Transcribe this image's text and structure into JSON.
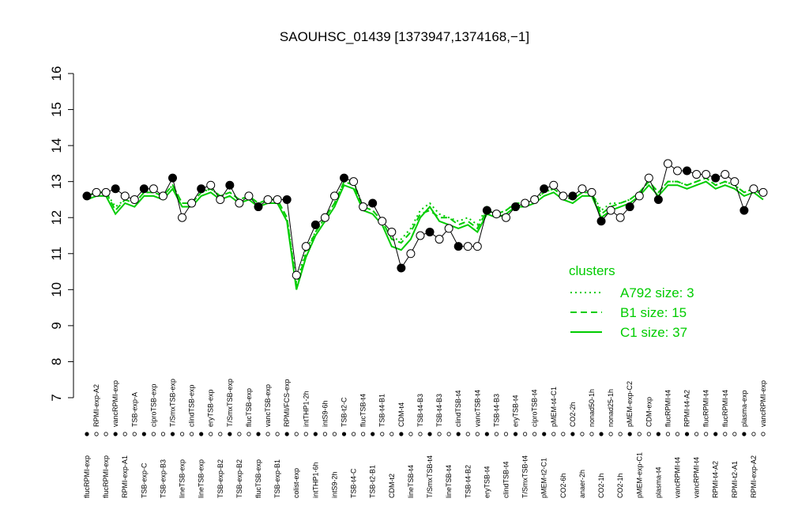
{
  "chart_data": {
    "type": "line",
    "title": "SAOUHSC_01439 [1373947,1374168,−1]",
    "categories": [
      "flucRPMI-exp",
      "RPMI-exp-A2",
      "flucRPMI-exp",
      "vancRPMI-exp",
      "RPMI-exp-A1",
      "TSB-exp-A",
      "TSB-exp-C",
      "ciproTSB-exp",
      "TSB-exp-B3",
      "T/SmxTSB-exp",
      "lineTSB-exp",
      "clindTSB-exp",
      "lineTSB-exp",
      "eryTSB-exp",
      "TSB-exp-B2",
      "T/SmxTSB-exp",
      "TSB-exp-B2",
      "flucTSB-exp",
      "flucTSB-exp",
      "vancTSB-exp",
      "TSB-exp-B1",
      "RPMI/FCS-exp",
      "colist-exp",
      "intTHP1-2h",
      "intTHP1-6h",
      "intS9-6h",
      "intS9-2h",
      "TSB-t2-C",
      "TSB-t4-C",
      "flucTSB-t4",
      "TSB-t2-B1",
      "TSB-t4-B1",
      "CDM-t2",
      "CDM-t4",
      "lineTSB-t4",
      "TSB-t4-B3",
      "T/SmxTSB-t4",
      "TSB-t4-B3",
      "lineTSB-t4",
      "clindTSB-t4",
      "TSB-t4-B2",
      "vancTSB-t4",
      "eryTSB-t4",
      "TSB-t4-B3",
      "clindTSB-t4",
      "eryTSB-t4",
      "T/SmxTSB-t4",
      "ciproTSB-t4",
      "pMEM-t2-C1",
      "pMEM-t4-C1",
      "CO2-6h",
      "CO2-2h",
      "anaer-2h",
      "nonad50-1h",
      "CO2-1h",
      "nonad25-1h",
      "CO2-1h",
      "pMEM-exp-C2",
      "pMEM-exp-C1",
      "CDM-exp",
      "plasma-t4",
      "flucRPMI-t4",
      "vancRPMI-t4",
      "RPMI-t4-A2",
      "vancRPMI-t4",
      "flucRPMI-t4",
      "RPMI-t4-A2",
      "flucRPMI-t4",
      "RPMI-t2-A1",
      "plasma-exp",
      "RPMI-exp-A2",
      "vancRPMI-exp"
    ],
    "values": [
      12.6,
      12.7,
      12.7,
      12.8,
      12.6,
      12.5,
      12.8,
      12.8,
      12.6,
      13.1,
      12.0,
      12.4,
      12.8,
      12.9,
      12.5,
      12.9,
      12.4,
      12.6,
      12.3,
      12.5,
      12.5,
      12.5,
      10.4,
      11.2,
      11.8,
      12.0,
      12.6,
      13.1,
      13.0,
      12.3,
      12.4,
      11.9,
      11.6,
      10.6,
      11.0,
      11.5,
      11.6,
      11.4,
      11.7,
      11.2,
      11.2,
      11.2,
      12.2,
      12.1,
      12.0,
      12.3,
      12.4,
      12.5,
      12.8,
      12.9,
      12.6,
      12.6,
      12.8,
      12.7,
      11.9,
      12.2,
      12.0,
      12.3,
      12.6,
      13.1,
      12.5,
      13.5,
      13.3,
      13.3,
      13.2,
      13.2,
      13.1,
      13.2,
      13.0,
      12.2,
      12.8,
      12.7
    ],
    "line_color": "#000000",
    "legend_title": "clusters",
    "legend_color": "#00cc00",
    "series": [
      {
        "name": "A792 size: 3",
        "color": "#00cc00",
        "dash": "dotted",
        "values": [
          12.6,
          12.7,
          12.7,
          12.3,
          12.5,
          12.4,
          12.7,
          12.7,
          12.6,
          12.9,
          12.4,
          12.4,
          12.7,
          12.8,
          12.6,
          12.7,
          12.5,
          12.6,
          12.4,
          12.5,
          12.5,
          12.0,
          10.2,
          11.1,
          11.6,
          12.0,
          12.4,
          13.0,
          13.0,
          12.3,
          12.2,
          11.9,
          11.4,
          11.4,
          11.7,
          12.2,
          12.4,
          12.1,
          12.0,
          11.9,
          12.0,
          11.8,
          12.3,
          12.1,
          12.2,
          12.4,
          12.4,
          12.5,
          12.7,
          12.8,
          12.6,
          12.5,
          12.7,
          12.7,
          12.2,
          12.4,
          12.4,
          12.5,
          12.7,
          13.0,
          12.7,
          13.0,
          13.0,
          12.9,
          13.0,
          13.1,
          12.9,
          13.0,
          12.9,
          12.7,
          12.8,
          12.6
        ]
      },
      {
        "name": "B1 size: 15",
        "color": "#00cc00",
        "dash": "dashed",
        "values": [
          12.6,
          12.7,
          12.7,
          12.2,
          12.5,
          12.4,
          12.7,
          12.7,
          12.6,
          12.9,
          12.4,
          12.4,
          12.7,
          12.8,
          12.6,
          12.7,
          12.5,
          12.6,
          12.4,
          12.5,
          12.5,
          12.0,
          10.1,
          11.0,
          11.6,
          12.0,
          12.4,
          13.0,
          12.9,
          12.3,
          12.2,
          11.9,
          11.4,
          11.3,
          11.6,
          12.1,
          12.2,
          12.0,
          12.0,
          11.8,
          11.9,
          11.7,
          12.2,
          12.1,
          12.2,
          12.4,
          12.4,
          12.5,
          12.7,
          12.8,
          12.6,
          12.5,
          12.7,
          12.7,
          12.1,
          12.3,
          12.4,
          12.5,
          12.7,
          13.0,
          12.7,
          13.0,
          13.0,
          12.9,
          13.0,
          13.1,
          12.9,
          13.0,
          12.9,
          12.7,
          12.8,
          12.6
        ]
      },
      {
        "name": "C1 size: 37",
        "color": "#00cc00",
        "dash": "solid",
        "values": [
          12.5,
          12.6,
          12.6,
          12.1,
          12.4,
          12.3,
          12.6,
          12.6,
          12.5,
          12.8,
          12.3,
          12.3,
          12.6,
          12.7,
          12.5,
          12.6,
          12.4,
          12.5,
          12.3,
          12.4,
          12.4,
          11.9,
          10.0,
          10.9,
          11.5,
          11.9,
          12.3,
          12.9,
          12.8,
          12.2,
          12.1,
          11.8,
          11.2,
          11.1,
          11.4,
          12.0,
          12.3,
          11.9,
          11.8,
          11.7,
          11.8,
          11.6,
          12.1,
          12.0,
          12.1,
          12.3,
          12.3,
          12.4,
          12.6,
          12.7,
          12.5,
          12.4,
          12.6,
          12.6,
          12.0,
          12.2,
          12.3,
          12.4,
          12.6,
          12.9,
          12.6,
          12.9,
          12.9,
          12.8,
          12.9,
          13.0,
          12.8,
          12.9,
          12.8,
          12.6,
          12.7,
          12.5
        ]
      }
    ],
    "ylim": [
      7,
      16
    ],
    "yticks": [
      7,
      8,
      9,
      10,
      11,
      12,
      13,
      14,
      15,
      16
    ]
  }
}
